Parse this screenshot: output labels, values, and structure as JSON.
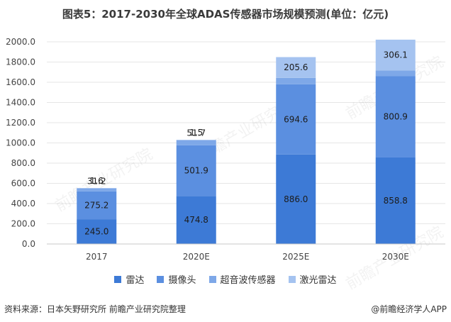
{
  "title": "图表5：2017-2030年全球ADAS传感器市场规模预测(单位：亿元)",
  "footer": {
    "source": "资料来源：日本矢野研究所 前瞻产业研究院整理",
    "brand": "@前瞻经济学人APP"
  },
  "watermark": "前瞻产业研究院",
  "chart_data": {
    "type": "bar",
    "stacked": true,
    "title": "图表5：2017-2030年全球ADAS传感器市场规模预测(单位：亿元)",
    "xlabel": "",
    "ylabel": "",
    "categories": [
      "2017",
      "2020E",
      "2025E",
      "2030E"
    ],
    "ylim": [
      0,
      2000
    ],
    "yticks": [
      "0.0",
      "200.0",
      "400.0",
      "600.0",
      "800.0",
      "1000.0",
      "1200.0",
      "1400.0",
      "1600.0",
      "1800.0",
      "2000.0"
    ],
    "grid": true,
    "legend_position": "bottom",
    "series": [
      {
        "name": "雷达",
        "color": "#3d7ad6",
        "values": [
          245.0,
          474.8,
          886.0,
          858.8
        ],
        "labels": [
          "245.0",
          "474.8",
          "886.0",
          "858.8"
        ]
      },
      {
        "name": "摄像头",
        "color": "#5b8fe0",
        "values": [
          275.2,
          501.9,
          694.6,
          800.9
        ],
        "labels": [
          "275.2",
          "501.9",
          "694.6",
          "800.9"
        ]
      },
      {
        "name": "超音波传感器",
        "color": "#7ea8e8",
        "values": [
          31.2,
          51.7,
          62.8,
          55.8
        ],
        "labels": [
          "31.2",
          "51.7",
          "62.8",
          "55.8"
        ]
      },
      {
        "name": "激光雷达",
        "color": "#a5c3f0",
        "values": [
          1.6,
          1.5,
          205.6,
          306.1
        ],
        "labels": [
          "1.6",
          "1.5",
          "205.6",
          "306.1"
        ]
      }
    ]
  }
}
